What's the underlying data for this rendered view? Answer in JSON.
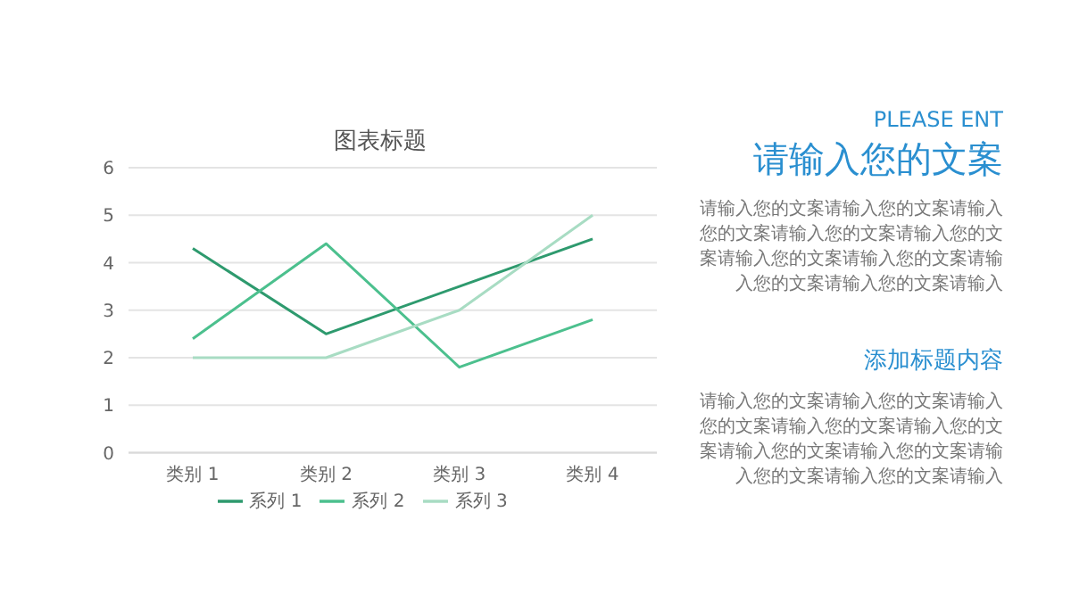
{
  "chart_data": {
    "type": "line",
    "title": "图表标题",
    "categories": [
      "类别 1",
      "类别 2",
      "类别 3",
      "类别 4"
    ],
    "series": [
      {
        "name": "系列 1",
        "color": "#2e9a6e",
        "values": [
          4.3,
          2.5,
          3.5,
          4.5
        ]
      },
      {
        "name": "系列 2",
        "color": "#4cc08e",
        "values": [
          2.4,
          4.4,
          1.8,
          2.8
        ]
      },
      {
        "name": "系列 3",
        "color": "#a8dcc3",
        "values": [
          2,
          2,
          3,
          5
        ]
      }
    ],
    "ylim": [
      0,
      6
    ],
    "yticks": [
      0,
      1,
      2,
      3,
      4,
      5,
      6
    ],
    "grid": "y",
    "legend": "bottom",
    "marker": "none",
    "line_style": "solid",
    "annotations": [
      "PLEASE ENT",
      "请输入您的文案",
      "请输入您的文案请输入您的文案请输入您的文案请输入您的文案请输入您的文案请输入您的文案请输入您的文案请输入您的文案请输入您的文案请输入",
      "添加标题内容",
      "请输入您的文案请输入您的文案请输入您的文案请输入您的文案请输入您的文案请输入您的文案请输入您的文案请输入您的文案请输入您的文案请输入"
    ]
  }
}
